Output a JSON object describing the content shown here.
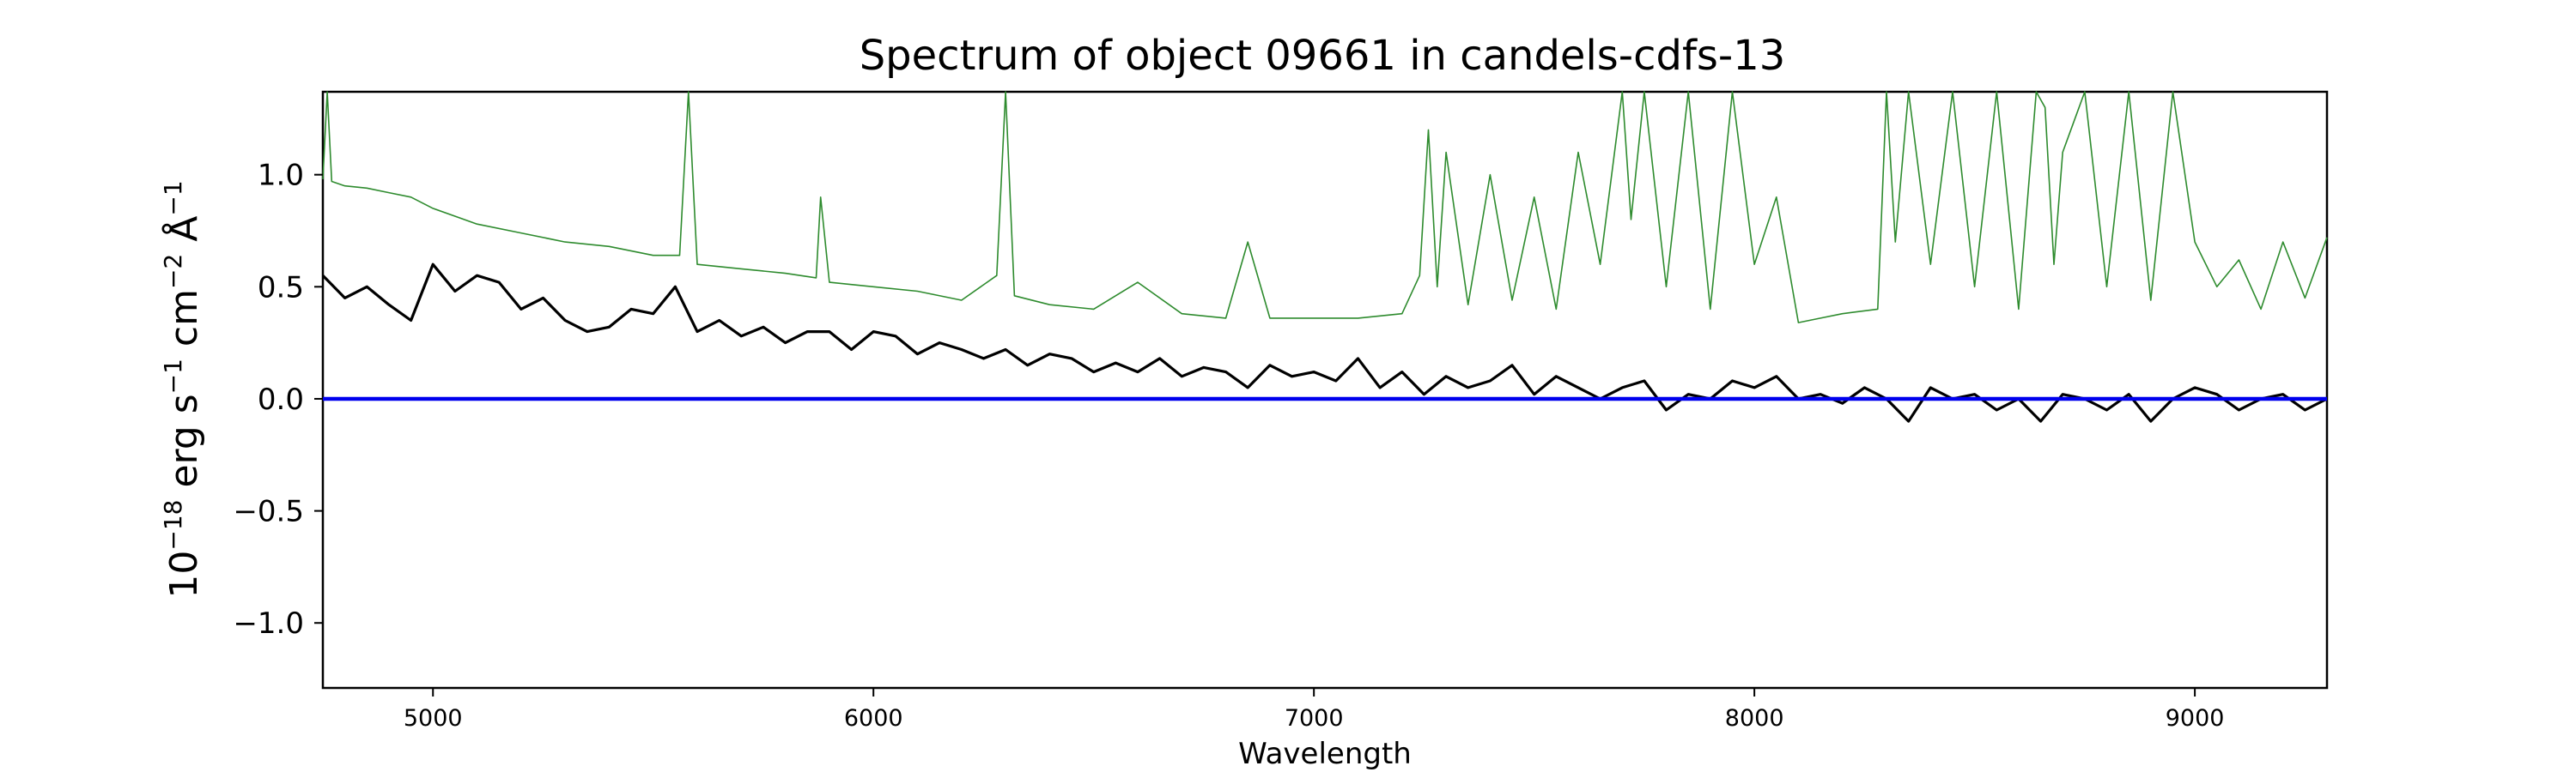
{
  "chart_data": {
    "type": "line",
    "title": "Spectrum of object 09661 in candels-cdfs-13",
    "xlabel": "Wavelength",
    "ylabel": {
      "base": "10",
      "exp": "−18",
      "erg": " erg s",
      "s_exp": "−1",
      "cm": " cm",
      "cm_exp": "−2",
      "ang": " Å",
      "ang_exp": "−1"
    },
    "xlim": [
      4750,
      9300
    ],
    "ylim": [
      -1.29,
      1.37
    ],
    "xticks": [
      5000,
      6000,
      7000,
      8000,
      9000
    ],
    "xtick_labels": [
      "5000",
      "6000",
      "7000",
      "8000",
      "9000"
    ],
    "yticks": [
      -1.0,
      -0.5,
      0.0,
      0.5,
      1.0
    ],
    "ytick_labels": [
      "−1.0",
      "−0.5",
      "0.0",
      "0.5",
      "1.0"
    ],
    "grid": false,
    "series": [
      {
        "role": "noise",
        "color": "#2e8b2e",
        "x": [
          4750,
          4760,
          4770,
          4800,
          4850,
          4900,
          4950,
          5000,
          5100,
          5200,
          5300,
          5400,
          5500,
          5560,
          5580,
          5600,
          5700,
          5800,
          5870,
          5880,
          5900,
          6000,
          6100,
          6200,
          6280,
          6300,
          6320,
          6400,
          6500,
          6600,
          6700,
          6800,
          6850,
          6900,
          7000,
          7100,
          7200,
          7240,
          7260,
          7280,
          7300,
          7350,
          7400,
          7450,
          7500,
          7550,
          7600,
          7650,
          7700,
          7720,
          7750,
          7800,
          7850,
          7900,
          7950,
          8000,
          8050,
          8100,
          8150,
          8200,
          8280,
          8300,
          8320,
          8350,
          8400,
          8450,
          8500,
          8550,
          8600,
          8640,
          8660,
          8680,
          8700,
          8750,
          8800,
          8850,
          8900,
          8950,
          9000,
          9050,
          9100,
          9150,
          9200,
          9250,
          9300
        ],
        "y": [
          0.98,
          1.37,
          0.97,
          0.95,
          0.94,
          0.92,
          0.9,
          0.85,
          0.78,
          0.74,
          0.7,
          0.68,
          0.64,
          0.64,
          1.37,
          0.6,
          0.58,
          0.56,
          0.54,
          0.9,
          0.52,
          0.5,
          0.48,
          0.44,
          0.55,
          1.37,
          0.46,
          0.42,
          0.4,
          0.52,
          0.38,
          0.36,
          0.7,
          0.36,
          0.36,
          0.36,
          0.38,
          0.55,
          1.2,
          0.5,
          1.1,
          0.42,
          1.0,
          0.44,
          0.9,
          0.4,
          1.1,
          0.6,
          1.37,
          0.8,
          1.37,
          0.5,
          1.37,
          0.4,
          1.37,
          0.6,
          0.9,
          0.34,
          0.36,
          0.38,
          0.4,
          1.37,
          0.7,
          1.37,
          0.6,
          1.37,
          0.5,
          1.37,
          0.4,
          1.37,
          1.3,
          0.6,
          1.1,
          1.37,
          0.5,
          1.37,
          0.44,
          1.37,
          0.7,
          0.5,
          0.62,
          0.4,
          0.7,
          0.45,
          0.72
        ]
      },
      {
        "role": "flux",
        "color": "#000000",
        "x": [
          4750,
          4800,
          4850,
          4900,
          4950,
          5000,
          5050,
          5100,
          5150,
          5200,
          5250,
          5300,
          5350,
          5400,
          5450,
          5500,
          5550,
          5600,
          5650,
          5700,
          5750,
          5800,
          5850,
          5900,
          5950,
          6000,
          6050,
          6100,
          6150,
          6200,
          6250,
          6300,
          6350,
          6400,
          6450,
          6500,
          6550,
          6600,
          6650,
          6700,
          6750,
          6800,
          6850,
          6900,
          6950,
          7000,
          7050,
          7100,
          7150,
          7200,
          7250,
          7300,
          7350,
          7400,
          7450,
          7500,
          7550,
          7600,
          7650,
          7700,
          7750,
          7800,
          7850,
          7900,
          7950,
          8000,
          8050,
          8100,
          8150,
          8200,
          8250,
          8300,
          8350,
          8400,
          8450,
          8500,
          8550,
          8600,
          8650,
          8700,
          8750,
          8800,
          8850,
          8900,
          8950,
          9000,
          9050,
          9100,
          9150,
          9200,
          9250,
          9300
        ],
        "y": [
          0.55,
          0.45,
          0.5,
          0.42,
          0.35,
          0.6,
          0.48,
          0.55,
          0.52,
          0.4,
          0.45,
          0.35,
          0.3,
          0.32,
          0.4,
          0.38,
          0.5,
          0.3,
          0.35,
          0.28,
          0.32,
          0.25,
          0.3,
          0.3,
          0.22,
          0.3,
          0.28,
          0.2,
          0.25,
          0.22,
          0.18,
          0.22,
          0.15,
          0.2,
          0.18,
          0.12,
          0.16,
          0.12,
          0.18,
          0.1,
          0.14,
          0.12,
          0.05,
          0.15,
          0.1,
          0.12,
          0.08,
          0.18,
          0.05,
          0.12,
          0.02,
          0.1,
          0.05,
          0.08,
          0.15,
          0.02,
          0.1,
          0.05,
          0.0,
          0.05,
          0.08,
          -0.05,
          0.02,
          0.0,
          0.08,
          0.05,
          0.1,
          0.0,
          0.02,
          -0.02,
          0.05,
          0.0,
          -0.1,
          0.05,
          0.0,
          0.02,
          -0.05,
          0.0,
          -0.1,
          0.02,
          0.0,
          -0.05,
          0.02,
          -0.1,
          0.0,
          0.05,
          0.02,
          -0.05,
          0.0,
          0.02,
          -0.05,
          0.0
        ]
      },
      {
        "role": "zero",
        "color": "#0000ee",
        "x": [
          4750,
          9300
        ],
        "y": [
          0.0,
          0.0
        ]
      }
    ]
  }
}
